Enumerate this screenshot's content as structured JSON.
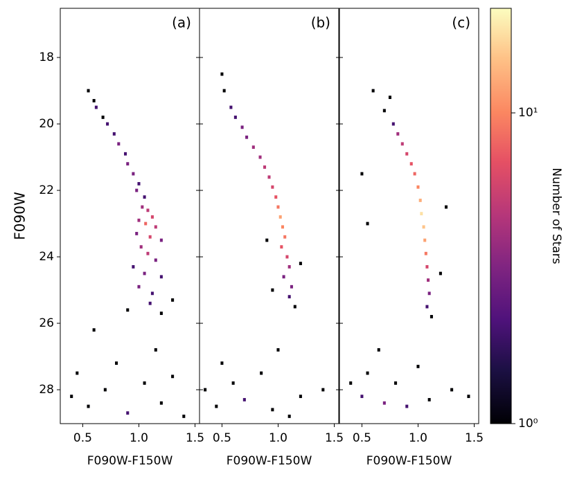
{
  "chart_data": {
    "type": "heatmap",
    "ylabel": "F090W",
    "ylim": [
      29.02,
      16.52
    ],
    "yticks": [
      18,
      20,
      22,
      24,
      26,
      28
    ],
    "bin_size": [
      0.025,
      0.1
    ],
    "colormap": "magma",
    "colorbar": {
      "label": "Number of Stars",
      "log": true,
      "clim": [
        1,
        21.7
      ],
      "ticks": [
        {
          "value": 1,
          "label": "10⁰"
        },
        {
          "value": 10,
          "label": "10¹"
        }
      ]
    },
    "panels": [
      {
        "label": "(a)",
        "xlabel": "F090W-F150W",
        "xlim": [
          0.3,
          1.54
        ],
        "xticks": [
          0.5,
          {
            "value": 1,
            "label": "1.0"
          },
          1.5
        ],
        "x": [
          0.55,
          0.6,
          0.62,
          0.68,
          0.72,
          0.78,
          0.82,
          0.88,
          0.9,
          0.95,
          1.0,
          0.98,
          1.05,
          1.03,
          1.08,
          1.12,
          1.0,
          1.06,
          1.15,
          0.98,
          1.1,
          1.2,
          1.02,
          1.08,
          1.15,
          0.95,
          1.05,
          1.2,
          1.0,
          1.12,
          1.1,
          1.2,
          0.9,
          1.3,
          0.45,
          0.7,
          0.55,
          0.9,
          1.2,
          1.4,
          0.4,
          1.05,
          0.8,
          1.3,
          0.6,
          1.15
        ],
        "y": [
          19.0,
          19.3,
          19.5,
          19.8,
          20.0,
          20.3,
          20.6,
          20.9,
          21.2,
          21.5,
          21.8,
          22.0,
          22.2,
          22.5,
          22.6,
          22.8,
          22.9,
          23.0,
          23.1,
          23.3,
          23.4,
          23.5,
          23.7,
          23.9,
          24.1,
          24.3,
          24.5,
          24.6,
          24.9,
          25.1,
          25.4,
          25.7,
          25.6,
          25.3,
          27.5,
          28.0,
          28.5,
          28.7,
          28.4,
          28.8,
          28.2,
          27.8,
          27.2,
          27.6,
          26.2,
          26.8
        ],
        "counts": [
          1,
          1,
          2,
          1,
          2,
          2,
          3,
          2,
          3,
          3,
          2,
          3,
          2,
          4,
          5,
          6,
          4,
          8,
          5,
          3,
          6,
          3,
          4,
          5,
          3,
          2,
          3,
          2,
          3,
          2,
          2,
          1,
          1,
          1,
          1,
          1,
          1,
          2,
          1,
          1,
          1,
          1,
          1,
          1,
          1,
          1
        ]
      },
      {
        "label": "(b)",
        "xlabel": "F090W-F150W",
        "xlim": [
          0.3,
          1.54
        ],
        "xticks": [
          0.5,
          {
            "value": 1,
            "label": "1.0"
          },
          1.5
        ],
        "x": [
          0.5,
          0.52,
          0.58,
          0.62,
          0.68,
          0.72,
          0.78,
          0.84,
          0.88,
          0.92,
          0.95,
          0.98,
          1.0,
          1.02,
          1.04,
          1.06,
          1.03,
          1.08,
          1.1,
          1.05,
          1.12,
          1.1,
          1.15,
          0.95,
          1.2,
          0.9,
          0.45,
          0.7,
          0.95,
          1.2,
          0.6,
          1.4,
          0.85,
          1.1,
          0.35,
          1.0,
          0.5
        ],
        "y": [
          18.5,
          19.0,
          19.5,
          19.8,
          20.1,
          20.4,
          20.7,
          21.0,
          21.3,
          21.6,
          21.9,
          22.2,
          22.5,
          22.8,
          23.1,
          23.4,
          23.7,
          24.0,
          24.3,
          24.6,
          24.9,
          25.2,
          25.5,
          25.0,
          24.2,
          23.5,
          28.5,
          28.3,
          28.6,
          28.2,
          27.8,
          28.0,
          27.5,
          28.8,
          28.0,
          26.8,
          27.2
        ],
        "counts": [
          1,
          1,
          2,
          2,
          3,
          3,
          4,
          4,
          5,
          5,
          6,
          7,
          9,
          12,
          10,
          9,
          7,
          6,
          4,
          3,
          3,
          2,
          1,
          1,
          1,
          1,
          1,
          2,
          1,
          1,
          1,
          1,
          1,
          1,
          1,
          1,
          1
        ]
      },
      {
        "label": "(c)",
        "xlabel": "F090W-F150W",
        "xlim": [
          0.3,
          1.54
        ],
        "xticks": [
          0.5,
          {
            "value": 1,
            "label": "1.0"
          },
          1.5
        ],
        "x": [
          0.6,
          0.75,
          0.7,
          0.78,
          0.82,
          0.86,
          0.9,
          0.94,
          0.97,
          1.0,
          1.02,
          1.03,
          1.05,
          1.06,
          1.07,
          1.08,
          1.09,
          1.1,
          1.08,
          1.12,
          0.5,
          0.55,
          1.25,
          1.2,
          0.5,
          0.7,
          0.9,
          1.1,
          1.3,
          0.55,
          0.8,
          1.0,
          1.45,
          0.4,
          0.65
        ],
        "y": [
          19.0,
          19.2,
          19.6,
          20.0,
          20.3,
          20.6,
          20.9,
          21.2,
          21.5,
          21.9,
          22.3,
          22.7,
          23.1,
          23.5,
          23.9,
          24.3,
          24.7,
          25.1,
          25.5,
          25.8,
          21.5,
          23.0,
          22.5,
          24.5,
          28.2,
          28.4,
          28.5,
          28.3,
          28.0,
          27.5,
          27.8,
          27.3,
          28.2,
          27.8,
          26.8
        ],
        "counts": [
          1,
          1,
          1,
          2,
          4,
          5,
          6,
          7,
          8,
          10,
          13,
          18,
          15,
          12,
          9,
          6,
          4,
          3,
          2,
          1,
          1,
          1,
          1,
          1,
          2,
          3,
          2,
          1,
          1,
          1,
          1,
          1,
          1,
          1,
          1
        ]
      }
    ]
  }
}
